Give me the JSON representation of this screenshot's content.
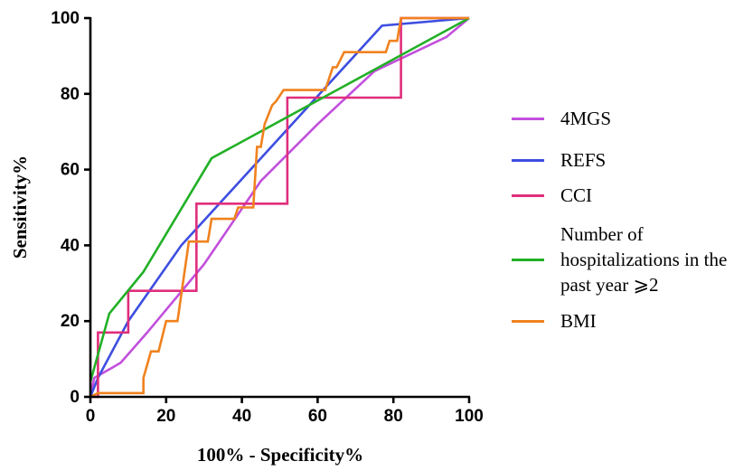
{
  "chart_data": {
    "type": "line",
    "xlabel": "100% - Specificity%",
    "ylabel": "Sensitivity%",
    "xlim": [
      0,
      100
    ],
    "ylim": [
      0,
      100
    ],
    "xticks": [
      0,
      20,
      40,
      60,
      80,
      100
    ],
    "yticks": [
      0,
      20,
      40,
      60,
      80,
      100
    ],
    "legend": "right",
    "series": [
      {
        "name": "4MGS",
        "color": "#c24fdc",
        "x": [
          0,
          1,
          8,
          15,
          30,
          45,
          60,
          75,
          94,
          100
        ],
        "values": [
          0,
          5,
          9,
          17,
          35,
          57,
          72,
          86,
          95,
          100
        ]
      },
      {
        "name": "REFS",
        "color": "#3d4ee0",
        "x": [
          0,
          2,
          10,
          24,
          77,
          100
        ],
        "values": [
          0,
          5,
          20,
          40,
          98,
          100
        ]
      },
      {
        "name": "CCI",
        "color": "#e02e7c",
        "x": [
          0,
          2,
          2,
          10,
          10,
          28,
          28,
          52,
          52,
          82,
          82,
          100
        ],
        "values": [
          0,
          0,
          17,
          17,
          28,
          28,
          51,
          51,
          79,
          79,
          100,
          100
        ]
      },
      {
        "name": "Number of hospitalizations in the past year ⩾2",
        "color": "#22b026",
        "x": [
          0,
          5,
          14,
          32,
          100
        ],
        "values": [
          4,
          22,
          33,
          63,
          100
        ]
      },
      {
        "name": "BMI",
        "color": "#f0821e",
        "x": [
          0,
          2,
          14,
          14,
          16,
          18,
          20,
          23,
          26,
          31,
          32,
          38,
          39,
          43,
          44,
          45,
          46,
          48,
          49,
          51,
          62,
          64,
          65,
          67,
          78,
          79,
          81,
          82,
          100
        ],
        "values": [
          0,
          1,
          1,
          5,
          12,
          12,
          20,
          20,
          41,
          41,
          47,
          47,
          50,
          50,
          66,
          66,
          72,
          77,
          78,
          81,
          81,
          87,
          87,
          91,
          91,
          94,
          94,
          100,
          100
        ]
      }
    ]
  }
}
